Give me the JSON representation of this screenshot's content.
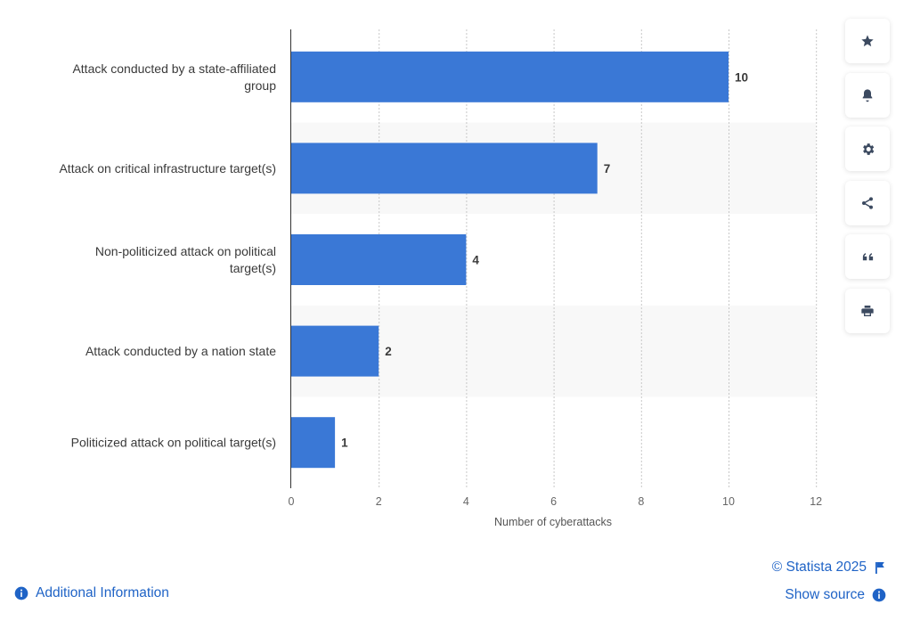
{
  "chart_data": {
    "type": "bar",
    "orientation": "horizontal",
    "categories": [
      [
        "Attack conducted by a state-affiliated",
        "group"
      ],
      [
        "Attack on critical infrastructure target(s)"
      ],
      [
        "Non-politicized attack on political",
        "target(s)"
      ],
      [
        "Attack conducted by a nation state"
      ],
      [
        "Politicized attack on political target(s)"
      ]
    ],
    "values": [
      10,
      7,
      4,
      2,
      1
    ],
    "value_labels": [
      "10",
      "7",
      "4",
      "2",
      "1"
    ],
    "xticks": [
      "0",
      "2",
      "4",
      "6",
      "8",
      "10",
      "12"
    ],
    "xlim": [
      0,
      12
    ],
    "xlabel": "Number of cyberattacks",
    "grid": "vertical dotted",
    "bar_color": "#3a78d6"
  },
  "sidebar": {
    "buttons": [
      {
        "icon": "star-icon"
      },
      {
        "icon": "bell-icon"
      },
      {
        "icon": "gear-icon"
      },
      {
        "icon": "share-icon"
      },
      {
        "icon": "quote-icon"
      },
      {
        "icon": "print-icon"
      }
    ]
  },
  "footer": {
    "additional_info": "Additional Information",
    "copyright": "© Statista 2025",
    "show_source": "Show source"
  },
  "colors": {
    "accent": "#1f63c6",
    "bar": "#3a78d6",
    "icon": "#3c4a60"
  }
}
